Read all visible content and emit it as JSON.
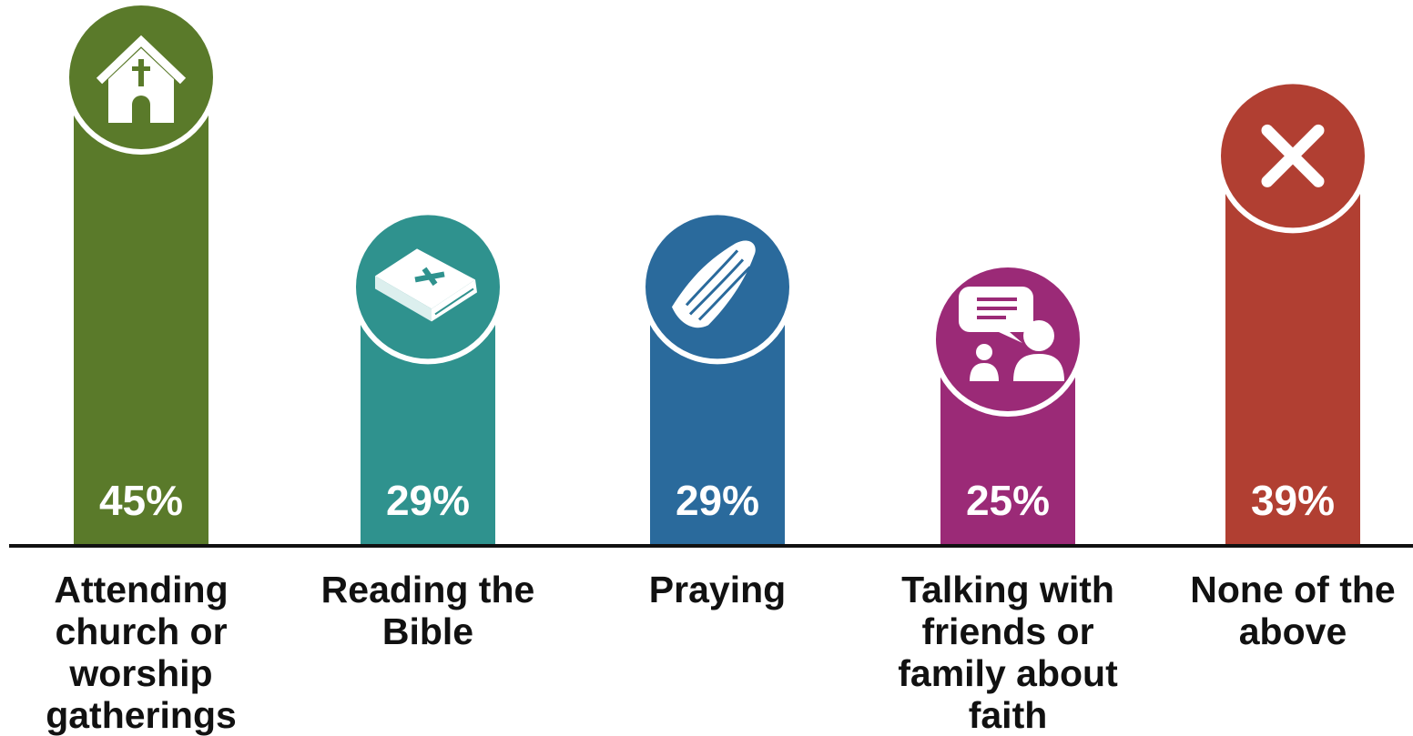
{
  "chart_data": {
    "type": "bar",
    "categories": [
      "Attending church or worship gatherings",
      "Reading the Bible",
      "Praying",
      "Talking with friends or family about faith",
      "None of the above"
    ],
    "category_lines": [
      [
        "Attending",
        "church or",
        "worship",
        "gatherings"
      ],
      [
        "Reading the",
        "Bible"
      ],
      [
        "Praying"
      ],
      [
        "Talking with",
        "friends or",
        "family about",
        "faith"
      ],
      [
        "None of the",
        "above"
      ]
    ],
    "values": [
      45,
      29,
      29,
      25,
      39
    ],
    "value_labels": [
      "45%",
      "29%",
      "29%",
      "25%",
      "39%"
    ],
    "colors": [
      "#5a7a2a",
      "#2f928e",
      "#2a6a9c",
      "#9b2a77",
      "#b13f32"
    ],
    "icons": [
      "church-icon",
      "bible-icon",
      "praying-hands-icon",
      "conversation-icon",
      "x-icon"
    ],
    "ylim": [
      0,
      50
    ],
    "legend": "none",
    "grid": false
  }
}
